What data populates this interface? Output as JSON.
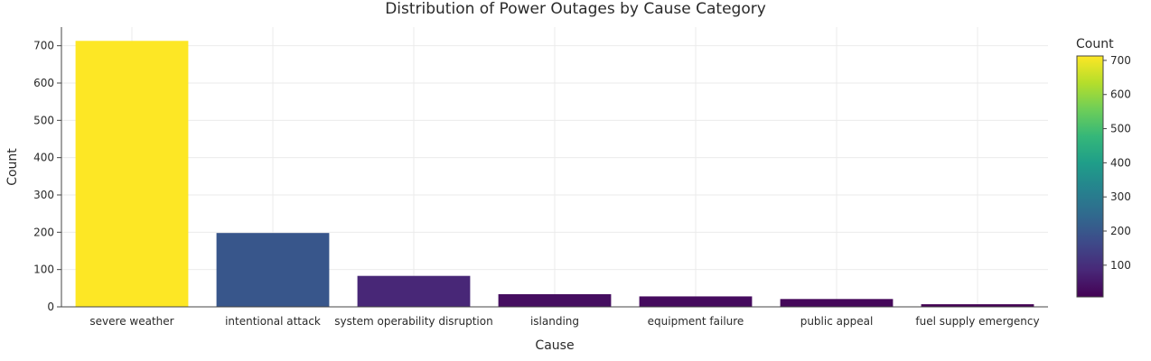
{
  "chart_data": {
    "type": "bar",
    "title": "Distribution of Power Outages by Cause Category",
    "xlabel": "Cause",
    "ylabel": "Count",
    "categories": [
      "severe weather",
      "intentional attack",
      "system operability disruption",
      "islanding",
      "equipment failure",
      "public appeal",
      "fuel supply emergency"
    ],
    "values": [
      713,
      198,
      83,
      34,
      28,
      21,
      7
    ],
    "ylim": [
      0,
      750
    ],
    "yticks": [
      0,
      100,
      200,
      300,
      400,
      500,
      600,
      700
    ],
    "grid": true,
    "colorscale": "Viridis",
    "colorbar": {
      "title": "Count",
      "range": [
        7,
        713
      ],
      "ticks": [
        100,
        200,
        300,
        400,
        500,
        600,
        700
      ],
      "placement": "right"
    }
  }
}
